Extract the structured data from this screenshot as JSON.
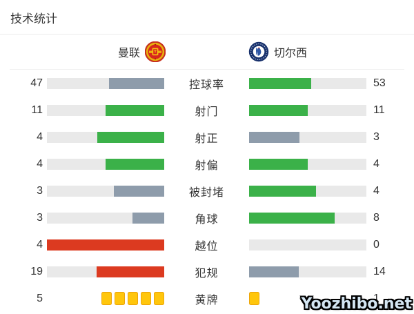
{
  "title": "技术统计",
  "teams": {
    "home": {
      "name": "曼联"
    },
    "away": {
      "name": "切尔西"
    }
  },
  "colors": {
    "green": "#3bb149",
    "gray": "#8e9cab",
    "red": "#dc3a20",
    "track": "#e9e9e9",
    "card_fill": "#ffc60c",
    "card_border": "#eca50b"
  },
  "stats": {
    "rows": [
      {
        "type": "bar",
        "label": "控球率",
        "home": {
          "value": "47",
          "pct": 47,
          "color": "gray"
        },
        "away": {
          "value": "53",
          "pct": 53,
          "color": "green"
        }
      },
      {
        "type": "bar",
        "label": "射门",
        "home": {
          "value": "11",
          "pct": 50,
          "color": "green"
        },
        "away": {
          "value": "11",
          "pct": 50,
          "color": "green"
        }
      },
      {
        "type": "bar",
        "label": "射正",
        "home": {
          "value": "4",
          "pct": 57.1,
          "color": "green"
        },
        "away": {
          "value": "3",
          "pct": 42.9,
          "color": "gray"
        }
      },
      {
        "type": "bar",
        "label": "射偏",
        "home": {
          "value": "4",
          "pct": 50,
          "color": "green"
        },
        "away": {
          "value": "4",
          "pct": 50,
          "color": "green"
        }
      },
      {
        "type": "bar",
        "label": "被封堵",
        "home": {
          "value": "3",
          "pct": 42.9,
          "color": "gray"
        },
        "away": {
          "value": "4",
          "pct": 57.1,
          "color": "green"
        }
      },
      {
        "type": "bar",
        "label": "角球",
        "home": {
          "value": "3",
          "pct": 27.3,
          "color": "gray"
        },
        "away": {
          "value": "8",
          "pct": 72.7,
          "color": "green"
        }
      },
      {
        "type": "bar",
        "label": "越位",
        "home": {
          "value": "4",
          "pct": 100,
          "color": "red"
        },
        "away": {
          "value": "0",
          "pct": 0,
          "color": "none"
        }
      },
      {
        "type": "bar",
        "label": "犯规",
        "home": {
          "value": "19",
          "pct": 57.6,
          "color": "red"
        },
        "away": {
          "value": "14",
          "pct": 42.4,
          "color": "gray"
        }
      },
      {
        "type": "cards",
        "label": "黄牌",
        "home": {
          "value": "5",
          "cards": 5
        },
        "away": {
          "value": "1",
          "cards": 1
        }
      }
    ]
  },
  "watermark": {
    "text": "Yoozhibo.net"
  },
  "chart_data": {
    "type": "bar",
    "orientation": "horizontal-paired",
    "title": "技术统计",
    "categories": [
      "控球率",
      "射门",
      "射正",
      "射偏",
      "被封堵",
      "角球",
      "越位",
      "犯规",
      "黄牌"
    ],
    "series": [
      {
        "name": "曼联",
        "values": [
          47,
          11,
          4,
          4,
          3,
          3,
          4,
          19,
          5
        ]
      },
      {
        "name": "切尔西",
        "values": [
          53,
          11,
          3,
          4,
          4,
          8,
          0,
          14,
          1
        ]
      }
    ],
    "bar_color_logic": "green=better-or-equal, slate-gray=worse, red=negative-stat (offsides/fouls), yellow squares=yellow cards",
    "legend_position": "top",
    "grid": false
  }
}
